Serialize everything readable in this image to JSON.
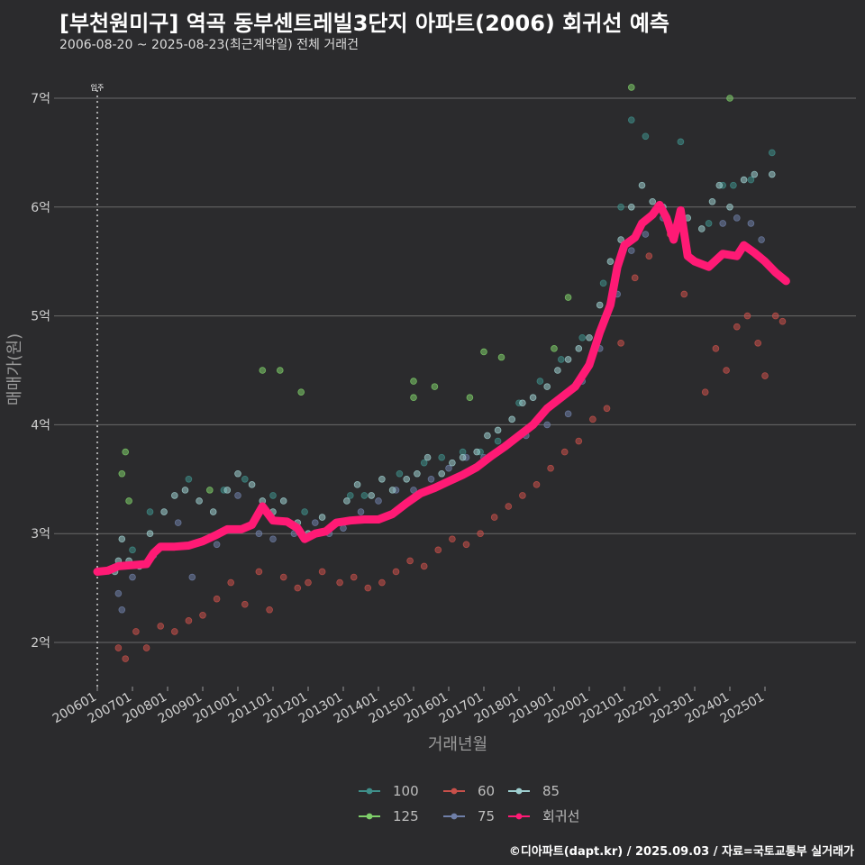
{
  "header": {
    "title": "[부천원미구] 역곡 동부센트레빌3단지 아파트(2006) 회귀선 예측",
    "subtitle": "2006-08-20 ~ 2025-08-23(최근계약일) 전체 거래건"
  },
  "caption": "©디아파트(dapt.kr) / 2025.09.03 / 자료=국토교통부 실거래가",
  "chart_data": {
    "type": "scatter",
    "xlabel": "거래년월",
    "ylabel": "매매가(원)",
    "ylim": [
      1.6,
      7.3
    ],
    "xlim": [
      2005.8,
      2026.2
    ],
    "grid": true,
    "legend_position": "bottom",
    "y_ticks": [
      {
        "value": 2,
        "label": "2억"
      },
      {
        "value": 3,
        "label": "3억"
      },
      {
        "value": 4,
        "label": "4억"
      },
      {
        "value": 5,
        "label": "5억"
      },
      {
        "value": 6,
        "label": "6억"
      },
      {
        "value": 7,
        "label": "7억"
      }
    ],
    "x_ticks": [
      {
        "value": 2006.0,
        "label": "200601"
      },
      {
        "value": 2007.0,
        "label": "200701"
      },
      {
        "value": 2008.0,
        "label": "200801"
      },
      {
        "value": 2009.0,
        "label": "200901"
      },
      {
        "value": 2010.0,
        "label": "201001"
      },
      {
        "value": 2011.0,
        "label": "201101"
      },
      {
        "value": 2012.0,
        "label": "201201"
      },
      {
        "value": 2013.0,
        "label": "201301"
      },
      {
        "value": 2014.0,
        "label": "201401"
      },
      {
        "value": 2015.0,
        "label": "201501"
      },
      {
        "value": 2016.0,
        "label": "201601"
      },
      {
        "value": 2017.0,
        "label": "201701"
      },
      {
        "value": 2018.0,
        "label": "201801"
      },
      {
        "value": 2019.0,
        "label": "201901"
      },
      {
        "value": 2020.0,
        "label": "202001"
      },
      {
        "value": 2021.0,
        "label": "202101"
      },
      {
        "value": 2022.0,
        "label": "202201"
      },
      {
        "value": 2023.0,
        "label": "202301"
      },
      {
        "value": 2024.0,
        "label": "202401"
      },
      {
        "value": 2025.0,
        "label": "202501"
      }
    ],
    "annotation": {
      "x": 2006.0,
      "label": "입주"
    },
    "series": [
      {
        "name": "100",
        "color": "#3f8f8a",
        "points": [
          [
            2007.0,
            2.85
          ],
          [
            2007.5,
            3.2
          ],
          [
            2008.6,
            3.5
          ],
          [
            2009.6,
            3.4
          ],
          [
            2010.2,
            3.5
          ],
          [
            2011.0,
            3.35
          ],
          [
            2011.9,
            3.2
          ],
          [
            2013.2,
            3.35
          ],
          [
            2013.6,
            3.35
          ],
          [
            2014.6,
            3.55
          ],
          [
            2015.3,
            3.65
          ],
          [
            2015.8,
            3.7
          ],
          [
            2016.4,
            3.75
          ],
          [
            2016.9,
            3.75
          ],
          [
            2017.4,
            3.85
          ],
          [
            2018.0,
            4.2
          ],
          [
            2018.6,
            4.4
          ],
          [
            2019.2,
            4.6
          ],
          [
            2019.8,
            4.8
          ],
          [
            2020.4,
            5.3
          ],
          [
            2020.9,
            6.0
          ],
          [
            2021.2,
            6.8
          ],
          [
            2021.6,
            6.65
          ],
          [
            2022.6,
            6.6
          ],
          [
            2023.4,
            5.85
          ],
          [
            2023.8,
            6.2
          ],
          [
            2024.1,
            6.2
          ],
          [
            2024.6,
            6.25
          ],
          [
            2025.2,
            6.5
          ]
        ]
      },
      {
        "name": "125",
        "color": "#7fcf6a",
        "points": [
          [
            2006.7,
            3.55
          ],
          [
            2006.8,
            3.75
          ],
          [
            2006.9,
            3.3
          ],
          [
            2009.2,
            3.4
          ],
          [
            2010.7,
            4.5
          ],
          [
            2011.2,
            4.5
          ],
          [
            2011.8,
            4.3
          ],
          [
            2015.0,
            4.4
          ],
          [
            2015.0,
            4.25
          ],
          [
            2015.6,
            4.35
          ],
          [
            2016.6,
            4.25
          ],
          [
            2017.0,
            4.67
          ],
          [
            2017.5,
            4.62
          ],
          [
            2019.0,
            4.7
          ],
          [
            2019.4,
            5.17
          ],
          [
            2021.2,
            7.1
          ],
          [
            2024.0,
            7.0
          ]
        ]
      },
      {
        "name": "60",
        "color": "#c8504a",
        "points": [
          [
            2006.6,
            1.95
          ],
          [
            2006.8,
            1.85
          ],
          [
            2007.1,
            2.1
          ],
          [
            2007.4,
            1.95
          ],
          [
            2007.8,
            2.15
          ],
          [
            2008.2,
            2.1
          ],
          [
            2008.6,
            2.2
          ],
          [
            2009.0,
            2.25
          ],
          [
            2009.4,
            2.4
          ],
          [
            2009.8,
            2.55
          ],
          [
            2010.2,
            2.35
          ],
          [
            2010.6,
            2.65
          ],
          [
            2010.9,
            2.3
          ],
          [
            2011.3,
            2.6
          ],
          [
            2011.7,
            2.5
          ],
          [
            2012.0,
            2.55
          ],
          [
            2012.4,
            2.65
          ],
          [
            2012.9,
            2.55
          ],
          [
            2013.3,
            2.6
          ],
          [
            2013.7,
            2.5
          ],
          [
            2014.1,
            2.55
          ],
          [
            2014.5,
            2.65
          ],
          [
            2014.9,
            2.75
          ],
          [
            2015.3,
            2.7
          ],
          [
            2015.7,
            2.85
          ],
          [
            2016.1,
            2.95
          ],
          [
            2016.5,
            2.9
          ],
          [
            2016.9,
            3.0
          ],
          [
            2017.3,
            3.15
          ],
          [
            2017.7,
            3.25
          ],
          [
            2018.1,
            3.35
          ],
          [
            2018.5,
            3.45
          ],
          [
            2018.9,
            3.6
          ],
          [
            2019.3,
            3.75
          ],
          [
            2019.7,
            3.85
          ],
          [
            2020.1,
            4.05
          ],
          [
            2020.5,
            4.15
          ],
          [
            2020.9,
            4.75
          ],
          [
            2021.3,
            5.35
          ],
          [
            2021.7,
            5.55
          ],
          [
            2022.3,
            5.75
          ],
          [
            2022.7,
            5.2
          ],
          [
            2023.3,
            4.3
          ],
          [
            2023.6,
            4.7
          ],
          [
            2023.9,
            4.5
          ],
          [
            2024.2,
            4.9
          ],
          [
            2024.5,
            5.0
          ],
          [
            2024.8,
            4.75
          ],
          [
            2025.0,
            4.45
          ],
          [
            2025.3,
            5.0
          ],
          [
            2025.5,
            4.95
          ]
        ]
      },
      {
        "name": "75",
        "color": "#6f7fa8",
        "points": [
          [
            2006.6,
            2.45
          ],
          [
            2006.7,
            2.3
          ],
          [
            2007.0,
            2.6
          ],
          [
            2007.6,
            2.8
          ],
          [
            2008.3,
            3.1
          ],
          [
            2008.7,
            2.6
          ],
          [
            2009.4,
            2.9
          ],
          [
            2010.0,
            3.35
          ],
          [
            2010.6,
            3.0
          ],
          [
            2011.0,
            2.95
          ],
          [
            2011.6,
            3.0
          ],
          [
            2012.2,
            3.1
          ],
          [
            2012.6,
            3.0
          ],
          [
            2013.0,
            3.05
          ],
          [
            2013.5,
            3.2
          ],
          [
            2014.0,
            3.3
          ],
          [
            2014.5,
            3.4
          ],
          [
            2015.0,
            3.4
          ],
          [
            2015.5,
            3.5
          ],
          [
            2016.0,
            3.6
          ],
          [
            2016.5,
            3.7
          ],
          [
            2017.0,
            3.7
          ],
          [
            2017.6,
            3.8
          ],
          [
            2018.2,
            3.9
          ],
          [
            2018.8,
            4.0
          ],
          [
            2019.4,
            4.1
          ],
          [
            2019.8,
            4.4
          ],
          [
            2020.3,
            4.7
          ],
          [
            2020.8,
            5.2
          ],
          [
            2021.2,
            5.6
          ],
          [
            2021.6,
            5.75
          ],
          [
            2022.1,
            5.9
          ],
          [
            2023.8,
            5.85
          ],
          [
            2024.2,
            5.9
          ],
          [
            2024.6,
            5.85
          ],
          [
            2024.9,
            5.7
          ]
        ]
      },
      {
        "name": "85",
        "color": "#9ecfd0",
        "points": [
          [
            2006.5,
            2.65
          ],
          [
            2006.6,
            2.75
          ],
          [
            2006.7,
            2.95
          ],
          [
            2006.9,
            2.75
          ],
          [
            2007.2,
            2.7
          ],
          [
            2007.5,
            3.0
          ],
          [
            2007.9,
            3.2
          ],
          [
            2008.2,
            3.35
          ],
          [
            2008.5,
            3.4
          ],
          [
            2008.9,
            3.3
          ],
          [
            2009.3,
            3.2
          ],
          [
            2009.7,
            3.4
          ],
          [
            2010.0,
            3.55
          ],
          [
            2010.4,
            3.45
          ],
          [
            2010.7,
            3.3
          ],
          [
            2011.0,
            3.2
          ],
          [
            2011.3,
            3.3
          ],
          [
            2011.7,
            3.1
          ],
          [
            2012.0,
            3.0
          ],
          [
            2012.4,
            3.15
          ],
          [
            2012.8,
            3.1
          ],
          [
            2013.1,
            3.3
          ],
          [
            2013.4,
            3.45
          ],
          [
            2013.8,
            3.35
          ],
          [
            2014.1,
            3.5
          ],
          [
            2014.4,
            3.4
          ],
          [
            2014.8,
            3.5
          ],
          [
            2015.1,
            3.55
          ],
          [
            2015.4,
            3.7
          ],
          [
            2015.8,
            3.55
          ],
          [
            2016.1,
            3.65
          ],
          [
            2016.4,
            3.7
          ],
          [
            2016.8,
            3.75
          ],
          [
            2017.1,
            3.9
          ],
          [
            2017.4,
            3.95
          ],
          [
            2017.8,
            4.05
          ],
          [
            2018.1,
            4.2
          ],
          [
            2018.4,
            4.25
          ],
          [
            2018.8,
            4.35
          ],
          [
            2019.1,
            4.5
          ],
          [
            2019.4,
            4.6
          ],
          [
            2019.7,
            4.7
          ],
          [
            2020.0,
            4.8
          ],
          [
            2020.3,
            5.1
          ],
          [
            2020.6,
            5.5
          ],
          [
            2020.9,
            5.7
          ],
          [
            2021.2,
            6.0
          ],
          [
            2021.5,
            6.2
          ],
          [
            2021.8,
            6.05
          ],
          [
            2022.1,
            6.0
          ],
          [
            2022.4,
            5.8
          ],
          [
            2022.8,
            5.9
          ],
          [
            2023.2,
            5.8
          ],
          [
            2023.5,
            6.05
          ],
          [
            2023.7,
            6.2
          ],
          [
            2024.0,
            6.0
          ],
          [
            2024.4,
            6.25
          ],
          [
            2024.7,
            6.3
          ],
          [
            2025.2,
            6.3
          ]
        ]
      },
      {
        "name": "회귀선",
        "color": "#ff1a75",
        "points": [
          [
            2006.0,
            2.65
          ],
          [
            2006.3,
            2.66
          ],
          [
            2006.6,
            2.7
          ],
          [
            2007.0,
            2.71
          ],
          [
            2007.4,
            2.72
          ],
          [
            2007.6,
            2.82
          ],
          [
            2007.8,
            2.88
          ],
          [
            2008.2,
            2.88
          ],
          [
            2008.6,
            2.89
          ],
          [
            2009.0,
            2.93
          ],
          [
            2009.4,
            2.99
          ],
          [
            2009.7,
            3.04
          ],
          [
            2010.1,
            3.04
          ],
          [
            2010.4,
            3.08
          ],
          [
            2010.7,
            3.25
          ],
          [
            2011.0,
            3.12
          ],
          [
            2011.4,
            3.11
          ],
          [
            2011.7,
            3.05
          ],
          [
            2011.9,
            2.95
          ],
          [
            2012.2,
            3.0
          ],
          [
            2012.5,
            3.02
          ],
          [
            2012.8,
            3.1
          ],
          [
            2013.2,
            3.12
          ],
          [
            2013.6,
            3.13
          ],
          [
            2014.0,
            3.13
          ],
          [
            2014.4,
            3.18
          ],
          [
            2014.8,
            3.28
          ],
          [
            2015.2,
            3.37
          ],
          [
            2015.6,
            3.42
          ],
          [
            2016.0,
            3.48
          ],
          [
            2016.4,
            3.54
          ],
          [
            2016.8,
            3.61
          ],
          [
            2017.2,
            3.71
          ],
          [
            2017.6,
            3.8
          ],
          [
            2018.0,
            3.9
          ],
          [
            2018.4,
            4.0
          ],
          [
            2018.8,
            4.15
          ],
          [
            2019.2,
            4.25
          ],
          [
            2019.6,
            4.35
          ],
          [
            2020.0,
            4.55
          ],
          [
            2020.3,
            4.85
          ],
          [
            2020.6,
            5.1
          ],
          [
            2020.8,
            5.45
          ],
          [
            2021.0,
            5.65
          ],
          [
            2021.3,
            5.72
          ],
          [
            2021.5,
            5.85
          ],
          [
            2021.8,
            5.93
          ],
          [
            2022.0,
            6.02
          ],
          [
            2022.2,
            5.9
          ],
          [
            2022.4,
            5.7
          ],
          [
            2022.6,
            5.97
          ],
          [
            2022.8,
            5.55
          ],
          [
            2023.0,
            5.5
          ],
          [
            2023.4,
            5.45
          ],
          [
            2023.8,
            5.57
          ],
          [
            2024.2,
            5.55
          ],
          [
            2024.4,
            5.65
          ],
          [
            2024.7,
            5.58
          ],
          [
            2025.0,
            5.5
          ],
          [
            2025.3,
            5.4
          ],
          [
            2025.6,
            5.32
          ]
        ]
      }
    ],
    "legend_order": [
      "100",
      "60",
      "85",
      "125",
      "75",
      "회귀선"
    ]
  }
}
